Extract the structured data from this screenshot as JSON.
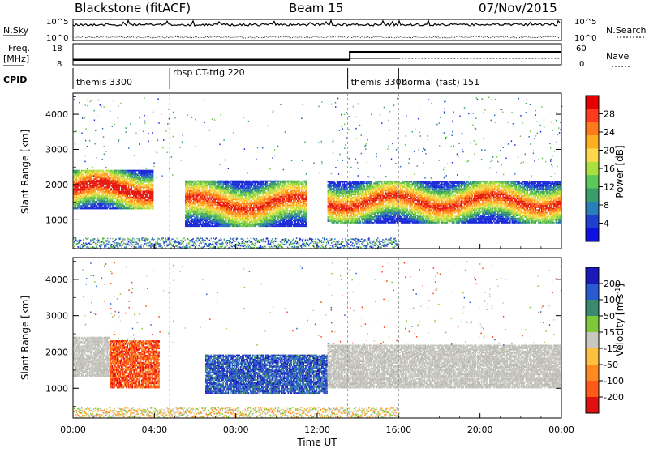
{
  "header": {
    "station": "Blackstone (fitACF)",
    "beam": "Beam 15",
    "date": "07/Nov/2015"
  },
  "top_panels": {
    "nsky_label": "N.Sky",
    "nsky_ticks": [
      "10^5",
      "10^0"
    ],
    "nsearch_label": "N.Search",
    "nsearch_ticks": [
      "10^5",
      "10^0"
    ],
    "freq_label": "Freq.",
    "freq_unit": "[MHz]",
    "freq_ticks": [
      "18",
      "8"
    ],
    "nave_label": "Nave",
    "nave_ticks": [
      "60",
      "0"
    ],
    "cpid_label": "CPID",
    "cpid_segments": [
      {
        "label": "themis 3300",
        "start_hr": 0.0
      },
      {
        "label": "rbsp CT-trig 220",
        "start_hr": 4.75
      },
      {
        "label": "themis 3300",
        "start_hr": 13.5
      },
      {
        "label": "normal (fast) 151",
        "start_hr": 16.0
      }
    ]
  },
  "colorbars": {
    "power": {
      "label": "Power [dB]",
      "ticks": [
        "28",
        "24",
        "20",
        "16",
        "12",
        "8",
        "4"
      ],
      "colors": [
        "#e60000",
        "#ff3a1f",
        "#ff7a1a",
        "#ffb020",
        "#ffd84a",
        "#a8e040",
        "#5cc85c",
        "#3a9e6a",
        "#2a7fb8",
        "#2040d0",
        "#1010e0"
      ]
    },
    "velocity": {
      "label": "Velocity [m s",
      "label_sup": "-1",
      "label_end": "]",
      "ticks": [
        "200",
        "100",
        "50",
        "15",
        "-15",
        "-50",
        "-100",
        "-200"
      ],
      "colors": [
        "#1a1ab8",
        "#2a5ad0",
        "#3a8a70",
        "#7ec83a",
        "#c8c8c0",
        "#ffc040",
        "#ff8a20",
        "#ff5a1a",
        "#e01010"
      ]
    }
  },
  "chart_data": [
    {
      "type": "heatmap",
      "name": "power",
      "ylabel": "Slant Range [km]",
      "x_ticks": [
        "00:00",
        "04:00",
        "08:00",
        "12:00",
        "16:00",
        "20:00",
        "00:00"
      ],
      "y_ticks": [
        "4000",
        "3000",
        "2000",
        "1000"
      ],
      "ylim": [
        180,
        4600
      ],
      "xlim_hours": [
        0,
        24
      ],
      "bands": [
        {
          "t0": 0.0,
          "t1": 3.9,
          "r_lo": 1300,
          "r_hi": 2400,
          "level": "high"
        },
        {
          "t0": 5.5,
          "t1": 11.5,
          "r_lo": 800,
          "r_hi": 2100,
          "level": "mid"
        },
        {
          "t0": 12.5,
          "t1": 24.0,
          "r_lo": 900,
          "r_hi": 2100,
          "level": "mid"
        }
      ]
    },
    {
      "type": "heatmap",
      "name": "velocity",
      "ylabel": "Slant Range [km]",
      "xlabel": "Time UT",
      "x_ticks": [
        "00:00",
        "04:00",
        "08:00",
        "12:00",
        "16:00",
        "20:00",
        "00:00"
      ],
      "y_ticks": [
        "4000",
        "3000",
        "2000",
        "1000"
      ],
      "ylim": [
        180,
        4600
      ],
      "xlim_hours": [
        0,
        24
      ],
      "bands": [
        {
          "t0": 0.0,
          "t1": 1.8,
          "r_lo": 1300,
          "r_hi": 2400,
          "velocity": "near-zero"
        },
        {
          "t0": 1.8,
          "t1": 4.2,
          "r_lo": 1000,
          "r_hi": 2300,
          "velocity": "negative"
        },
        {
          "t0": 6.5,
          "t1": 12.5,
          "r_lo": 850,
          "r_hi": 1900,
          "velocity": "positive"
        },
        {
          "t0": 12.5,
          "t1": 24.0,
          "r_lo": 1000,
          "r_hi": 2200,
          "velocity": "near-zero"
        }
      ]
    }
  ]
}
